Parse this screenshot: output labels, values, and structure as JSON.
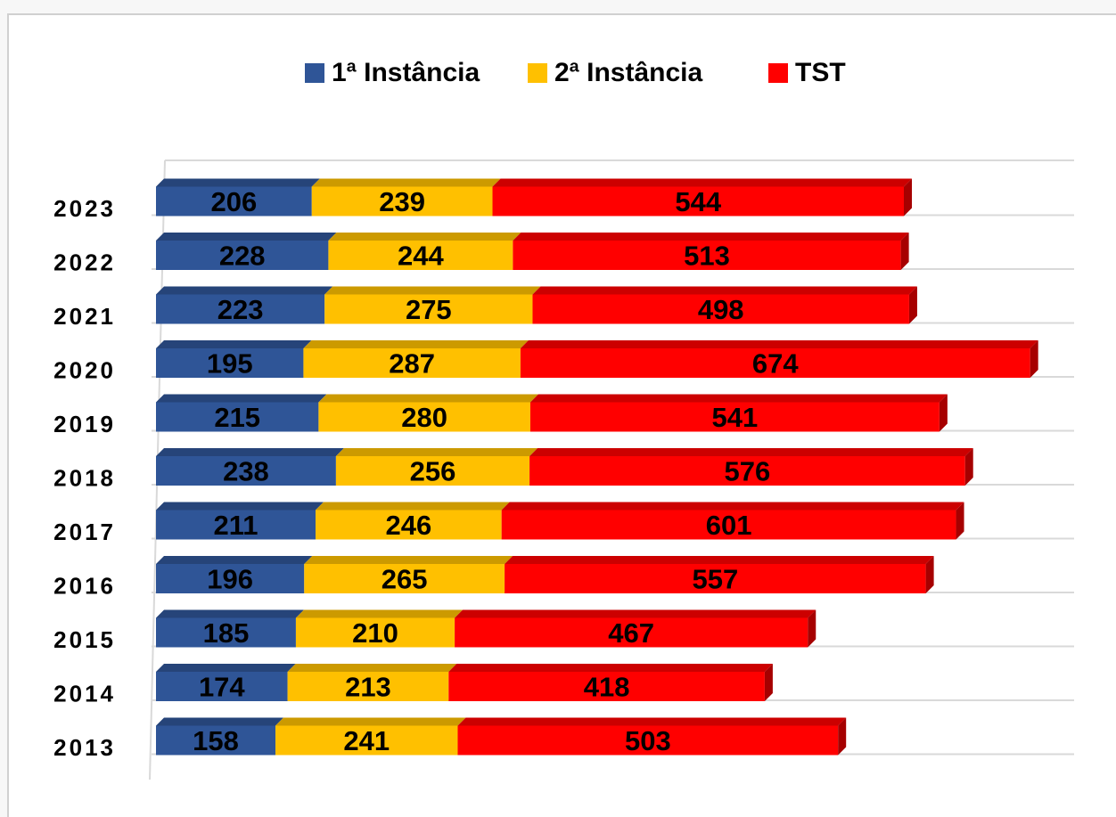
{
  "chart_data": {
    "type": "stacked-bar-horizontal",
    "categories": [
      "2023",
      "2022",
      "2021",
      "2020",
      "2019",
      "2018",
      "2017",
      "2016",
      "2015",
      "2014",
      "2013"
    ],
    "series": [
      {
        "name": "1ª Instância",
        "color": "#2f5597",
        "values": [
          206,
          228,
          223,
          195,
          215,
          238,
          211,
          196,
          185,
          174,
          158
        ]
      },
      {
        "name": "2ª Instância",
        "color": "#ffc000",
        "values": [
          239,
          244,
          275,
          287,
          280,
          256,
          246,
          265,
          210,
          213,
          241
        ]
      },
      {
        "name": "TST",
        "color": "#ff0000",
        "values": [
          544,
          513,
          498,
          674,
          541,
          576,
          601,
          557,
          467,
          418,
          503
        ]
      }
    ],
    "xlim": [
      0,
      1200
    ],
    "legend": "top",
    "grid": true
  }
}
